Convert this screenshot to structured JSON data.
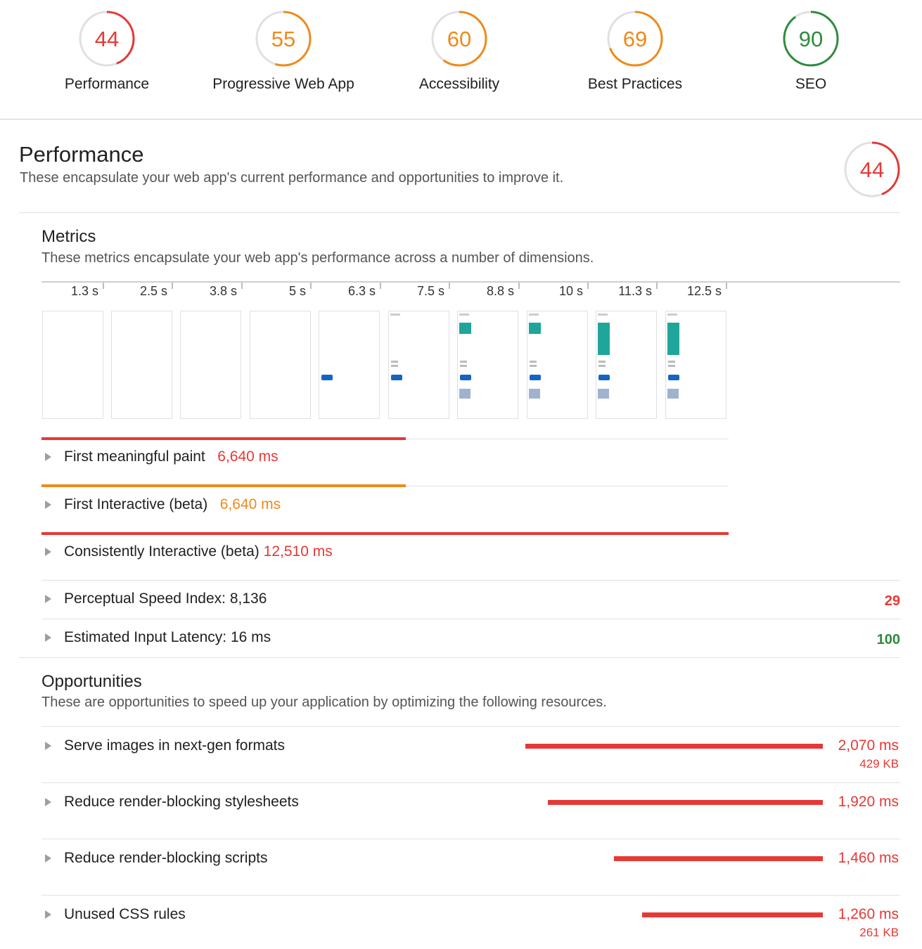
{
  "categories": [
    {
      "label": "Performance",
      "score": 44,
      "color": "#e53935"
    },
    {
      "label": "Progressive Web App",
      "score": 55,
      "color": "#ef8a1a"
    },
    {
      "label": "Accessibility",
      "score": 60,
      "color": "#ef8a1a"
    },
    {
      "label": "Best Practices",
      "score": 69,
      "color": "#ef8a1a"
    },
    {
      "label": "SEO",
      "score": 90,
      "color": "#2e8b3e"
    }
  ],
  "performance": {
    "title": "Performance",
    "description": "These encapsulate your web app's current performance and opportunities to improve it.",
    "score": 44,
    "score_color": "#e53935"
  },
  "metrics": {
    "title": "Metrics",
    "description": "These metrics encapsulate your web app's performance across a number of dimensions.",
    "timeline_ticks": [
      "1.3 s",
      "2.5 s",
      "3.8 s",
      "5 s",
      "6.3 s",
      "7.5 s",
      "8.8 s",
      "10 s",
      "11.3 s",
      "12.5 s"
    ],
    "items": [
      {
        "label": "First meaningful paint",
        "value": "6,640 ms",
        "bar_color": "#e53935"
      },
      {
        "label": "First Interactive (beta)",
        "value": "6,640 ms",
        "bar_color": "#ef8a1a"
      },
      {
        "label": "Consistently Interactive (beta)",
        "value": "12,510 ms",
        "bar_color": "#e53935"
      }
    ],
    "scored": [
      {
        "label": "Perceptual Speed Index: 8,136",
        "score": "29",
        "color": "#e53935"
      },
      {
        "label": "Estimated Input Latency: 16 ms",
        "score": "100",
        "color": "#2e8b3e"
      }
    ]
  },
  "opportunities": {
    "title": "Opportunities",
    "description": "These are opportunities to speed up your application by optimizing the following resources.",
    "items": [
      {
        "label": "Serve images in next-gen formats",
        "ms": "2,070 ms",
        "kb": "429 KB"
      },
      {
        "label": "Reduce render-blocking stylesheets",
        "ms": "1,920 ms",
        "kb": ""
      },
      {
        "label": "Reduce render-blocking scripts",
        "ms": "1,460 ms",
        "kb": ""
      },
      {
        "label": "Unused CSS rules",
        "ms": "1,260 ms",
        "kb": "261 KB"
      }
    ]
  }
}
